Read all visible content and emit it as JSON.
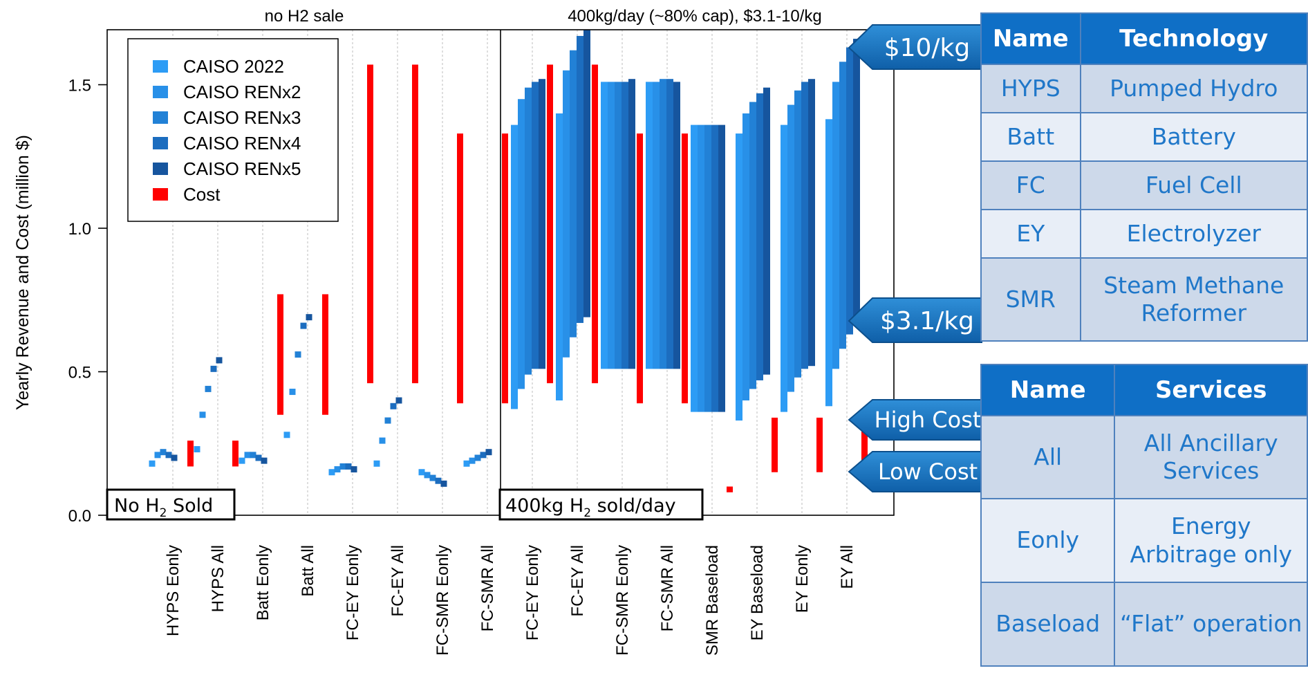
{
  "chart_data": {
    "type": "bar",
    "ylabel": "Yearly Revenue and Cost (million $)",
    "ylim": [
      0,
      1.7
    ],
    "yticks": [
      "0.0",
      "0.5",
      "1.0",
      "1.5"
    ],
    "panel_titles": [
      "no H2 sale",
      "400kg/day (~80% cap), $3.1-10/kg"
    ],
    "panel_labels": [
      {
        "prefix": "No H",
        "sub": "2",
        "suffix": " Sold"
      },
      {
        "prefix": "400kg H",
        "sub": "2",
        "suffix": " sold/day"
      }
    ],
    "categories": [
      "HYPS Eonly",
      "HYPS All",
      "Batt Eonly",
      "Batt All",
      "FC-EY Eonly",
      "FC-EY All",
      "FC-SMR Eonly",
      "FC-SMR All",
      "FC-EY Eonly",
      "FC-EY All",
      "FC-SMR Eonly",
      "FC-SMR All",
      "SMR Baseload",
      "EY Baseload",
      "EY Eonly",
      "EY All"
    ],
    "legend": {
      "position": "top-left",
      "entries": [
        {
          "label": "CAISO 2022",
          "color": "#2d9cf5"
        },
        {
          "label": "CAISO RENx2",
          "color": "#2890e8"
        },
        {
          "label": "CAISO RENx3",
          "color": "#2281d6"
        },
        {
          "label": "CAISO RENx4",
          "color": "#1c6dbf"
        },
        {
          "label": "CAISO RENx5",
          "color": "#16559e"
        },
        {
          "label": "Cost",
          "color": "#ff0000"
        }
      ]
    },
    "series_colors": [
      "#2d9cf5",
      "#2890e8",
      "#2281d6",
      "#1c6dbf",
      "#16559e"
    ],
    "cost_color": "#ff0000",
    "revenue_points": [
      [
        0.18,
        0.21,
        0.22,
        0.21,
        0.2
      ],
      [
        0.23,
        0.35,
        0.44,
        0.51,
        0.54
      ],
      [
        0.19,
        0.21,
        0.21,
        0.2,
        0.19
      ],
      [
        0.28,
        0.43,
        0.56,
        0.66,
        0.69
      ],
      [
        0.15,
        0.16,
        0.17,
        0.17,
        0.16
      ],
      [
        0.18,
        0.26,
        0.33,
        0.38,
        0.4
      ],
      [
        0.15,
        0.14,
        0.13,
        0.12,
        0.11
      ],
      [
        0.18,
        0.19,
        0.2,
        0.21,
        0.22
      ]
    ],
    "revenue_ranges": [
      [
        [
          0.37,
          1.36
        ],
        [
          0.44,
          1.45
        ],
        [
          0.49,
          1.49
        ],
        [
          0.51,
          1.51
        ],
        [
          0.51,
          1.52
        ]
      ],
      [
        [
          0.4,
          1.4
        ],
        [
          0.55,
          1.55
        ],
        [
          0.62,
          1.62
        ],
        [
          0.67,
          1.67
        ],
        [
          0.69,
          1.69
        ]
      ],
      [
        [
          0.51,
          1.51
        ],
        [
          0.51,
          1.51
        ],
        [
          0.51,
          1.51
        ],
        [
          0.51,
          1.51
        ],
        [
          0.51,
          1.52
        ]
      ],
      [
        [
          0.51,
          1.51
        ],
        [
          0.51,
          1.51
        ],
        [
          0.51,
          1.52
        ],
        [
          0.51,
          1.52
        ],
        [
          0.51,
          1.51
        ]
      ],
      [
        [
          0.36,
          1.36
        ],
        [
          0.36,
          1.36
        ],
        [
          0.36,
          1.36
        ],
        [
          0.36,
          1.36
        ],
        [
          0.36,
          1.36
        ]
      ],
      [
        [
          0.33,
          1.33
        ],
        [
          0.4,
          1.4
        ],
        [
          0.44,
          1.44
        ],
        [
          0.47,
          1.47
        ],
        [
          0.49,
          1.49
        ]
      ],
      [
        [
          0.36,
          1.36
        ],
        [
          0.43,
          1.43
        ],
        [
          0.48,
          1.48
        ],
        [
          0.51,
          1.51
        ],
        [
          0.52,
          1.52
        ]
      ],
      [
        [
          0.38,
          1.38
        ],
        [
          0.51,
          1.51
        ],
        [
          0.58,
          1.58
        ],
        [
          0.63,
          1.63
        ],
        [
          0.66,
          1.66
        ]
      ]
    ],
    "costs": [
      [
        0.17,
        0.26
      ],
      [
        0.17,
        0.26
      ],
      [
        0.35,
        0.77
      ],
      [
        0.35,
        0.77
      ],
      [
        0.46,
        1.57
      ],
      [
        0.46,
        1.57
      ],
      [
        0.39,
        1.33
      ],
      [
        0.39,
        1.33
      ],
      [
        0.46,
        1.57
      ],
      [
        0.46,
        1.57
      ],
      [
        0.39,
        1.33
      ],
      [
        0.39,
        1.33
      ],
      [
        0.08,
        0.1
      ],
      [
        0.15,
        0.34
      ],
      [
        0.15,
        0.34
      ],
      [
        0.15,
        0.34
      ]
    ]
  },
  "callouts": {
    "high_price": "$10/kg",
    "low_price": "$3.1/kg",
    "high_cost": "High Cost",
    "low_cost": "Low Cost"
  },
  "tech_table": {
    "headers": [
      "Name",
      "Technology"
    ],
    "rows": [
      [
        "HYPS",
        "Pumped Hydro"
      ],
      [
        "Batt",
        "Battery"
      ],
      [
        "FC",
        "Fuel Cell"
      ],
      [
        "EY",
        "Electrolyzer"
      ],
      [
        "SMR",
        "Steam Methane Reformer"
      ]
    ]
  },
  "services_table": {
    "headers": [
      "Name",
      "Services"
    ],
    "rows": [
      [
        "All",
        "All Ancillary Services"
      ],
      [
        "Eonly",
        "Energy Arbitrage only"
      ],
      [
        "Baseload",
        "“Flat” operation"
      ]
    ]
  }
}
